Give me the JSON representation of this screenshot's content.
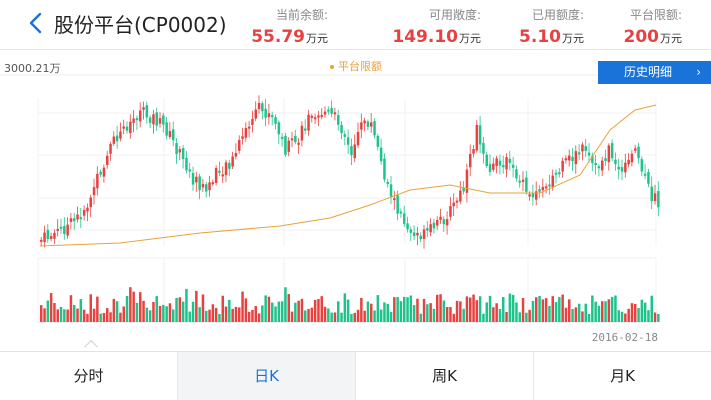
{
  "header": {
    "title": "股份平台(CP0002)",
    "stats": [
      {
        "label": "当前余额:",
        "value": "55.79",
        "unit": "万元"
      },
      {
        "label": "可用敞度:",
        "value": "149.10",
        "unit": "万元"
      },
      {
        "label": "已用额度:",
        "value": "5.10",
        "unit": "万元"
      },
      {
        "label": "平台限额:",
        "value": "200",
        "unit": "万元"
      }
    ]
  },
  "chart": {
    "y_top_label": "3000.21万",
    "legend_label": "平台限额",
    "history_button": "历史明细",
    "date_label": "2016-02-18"
  },
  "tabs": [
    "分时",
    "日K",
    "周K",
    "月K"
  ],
  "colors": {
    "up": "#e64340",
    "down": "#1ec38b",
    "limit_line": "#e9a23b",
    "accent": "#1a73d9"
  },
  "chart_data": {
    "type": "candlestick",
    "ylim": [
      0,
      3000.21
    ],
    "ticks": [
      "3000.21万"
    ],
    "end_date": "2016-02-18",
    "series": [
      {
        "name": "平台限额",
        "kind": "line"
      }
    ]
  }
}
